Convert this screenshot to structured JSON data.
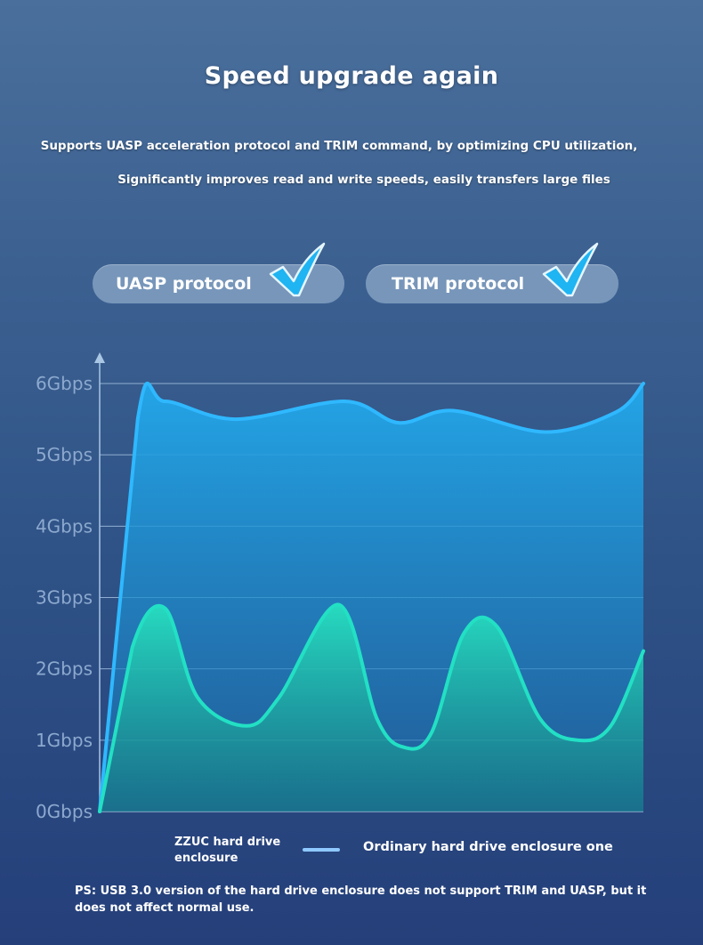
{
  "header": {
    "title": "Speed upgrade again",
    "subtitle_line1": "Supports UASP acceleration protocol and TRIM command, by optimizing CPU utilization,",
    "subtitle_line2": "Significantly improves read and write speeds, easily transfers large files"
  },
  "badges": [
    {
      "label": "UASP protocol",
      "icon": "checkmark-icon"
    },
    {
      "label": "TRIM protocol",
      "icon": "checkmark-icon"
    }
  ],
  "colors": {
    "zzuc_series": "#2fb8ff",
    "ordinary_series": "#22e0c4",
    "legend_swatch": "#8ec9ff",
    "check": "#1fb4f2",
    "grid": "#a9c6e4",
    "axis_label": "#8da9cf"
  },
  "chart_data": {
    "type": "area",
    "title": "",
    "xlabel": "",
    "ylabel": "",
    "y_ticks": [
      "0Gbps",
      "1Gbps",
      "2Gbps",
      "3Gbps",
      "4Gbps",
      "5Gbps",
      "6Gbps"
    ],
    "ylim": [
      0,
      6
    ],
    "xlim": [
      0,
      100
    ],
    "grid": true,
    "legend_position": "bottom",
    "series": [
      {
        "name": "ZZUC hard drive enclosure",
        "x": [
          0,
          7,
          12,
          25,
          45,
          55,
          65,
          82,
          95,
          100
        ],
        "values": [
          0,
          5.5,
          5.75,
          5.5,
          5.75,
          5.45,
          5.62,
          5.32,
          5.6,
          6.0
        ]
      },
      {
        "name": "Ordinary hard drive enclosure one",
        "x": [
          0,
          6,
          12,
          18,
          27,
          33,
          44,
          51,
          56,
          61,
          67,
          73,
          81,
          88,
          94,
          100
        ],
        "values": [
          0,
          2.3,
          2.85,
          1.6,
          1.2,
          1.6,
          2.9,
          1.3,
          0.9,
          1.1,
          2.5,
          2.6,
          1.3,
          1.0,
          1.2,
          2.25
        ]
      }
    ]
  },
  "footnote": "PS: USB 3.0 version of the hard drive enclosure does not support TRIM and UASP, but it does not affect normal use."
}
